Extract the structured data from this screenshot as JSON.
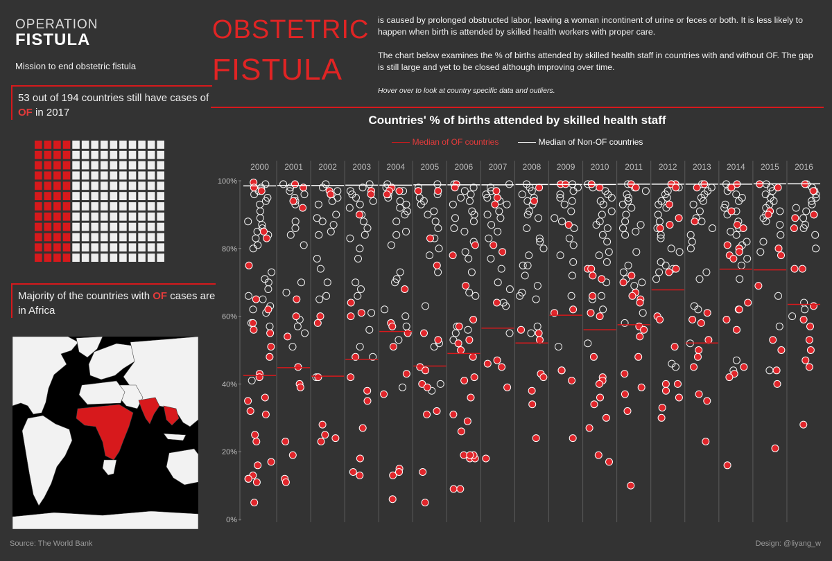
{
  "logo": {
    "top": "OPERATION",
    "bottom": "FISTULA"
  },
  "mission": "Mission to end obstetric fistula",
  "callout1": {
    "pre": "53 out of 194 countries still have cases of ",
    "highlight": "OF",
    "post": " in 2017"
  },
  "callout2": {
    "pre": "Majority of the countries with ",
    "highlight": "OF",
    "post": " cases are in Africa"
  },
  "waffle": {
    "total": 194,
    "of_countries": 53,
    "rows": 12,
    "cols": 14,
    "of_color": "#d7191c",
    "non_color": "#eeeeee"
  },
  "title": {
    "line1": "OBSTETRIC",
    "line2": "FISTULA"
  },
  "description": {
    "p1": "is caused by prolonged obstructed labor, leaving a woman incontinent of urine or feces or both.  It is less likely to happen when birth is attended by skilled health workers  with proper care.",
    "p2": "The chart below examines the % of births attended by skilled health staff in countries with and without OF. The gap is still large and yet to be closed although improving over time.",
    "hover_note": "Hover over to look at country specific data and outliers."
  },
  "footer": {
    "source": "Source: The World Bank",
    "design": "Design: @liyang_w"
  },
  "colors": {
    "background": "#333333",
    "accent": "#d7191c",
    "non_of": "#ffffff"
  },
  "chart_data": {
    "type": "scatter",
    "title": "Countries' % of births attended by skilled health staff",
    "legend": [
      {
        "name": "Median of OF countries",
        "color": "#d7191c"
      },
      {
        "name": "Median of Non-OF countries",
        "color": "#ffffff"
      }
    ],
    "y_ticks": [
      "100%",
      "80%",
      "60%",
      "40%",
      "20%",
      "0%"
    ],
    "ylim": [
      0,
      100
    ],
    "years": [
      "2000",
      "2001",
      "2002",
      "2003",
      "2004",
      "2005",
      "2006",
      "2007",
      "2008",
      "2009",
      "2010",
      "2011",
      "2012",
      "2013",
      "2014",
      "2015",
      "2016"
    ],
    "median_of": [
      42.5,
      44.8,
      42.3,
      47.3,
      55.5,
      45.3,
      49.0,
      56.5,
      52.1,
      60.3,
      56.0,
      57.5,
      67.8,
      52.1,
      73.9,
      73.7,
      63.5
    ],
    "median_non_of": [
      98.5,
      98.6,
      98.6,
      98.7,
      98.7,
      98.8,
      98.8,
      98.8,
      98.9,
      98.9,
      98.9,
      99.0,
      99.0,
      99.0,
      99.0,
      99.1,
      99.1
    ],
    "of_points": [
      [
        99.5,
        98,
        97,
        83,
        65,
        58,
        56,
        55,
        51,
        43,
        42,
        36,
        35,
        32,
        31,
        25,
        23,
        17,
        16,
        13,
        12,
        12,
        11,
        5,
        85,
        75,
        62,
        48
      ],
      [
        99,
        98,
        94,
        92,
        65,
        60,
        54,
        45,
        40,
        39,
        23,
        19,
        12,
        11
      ],
      [
        97,
        96,
        60,
        58,
        42,
        28,
        25,
        24,
        23
      ],
      [
        97,
        96,
        90,
        64,
        61,
        60,
        48,
        42,
        38,
        35,
        27,
        18,
        14,
        13
      ],
      [
        98,
        97,
        97,
        96,
        68,
        58,
        57,
        55,
        51,
        43,
        37,
        15,
        14,
        13,
        6
      ],
      [
        97,
        97,
        83,
        75,
        55,
        53,
        45,
        44,
        40,
        39,
        31,
        32,
        14,
        5
      ],
      [
        99,
        98,
        81,
        78,
        69,
        59,
        57,
        53,
        52,
        50,
        48,
        42,
        41,
        36,
        31,
        29,
        26,
        19,
        18,
        18,
        19,
        19,
        9,
        9
      ],
      [
        97,
        95,
        93,
        81,
        79,
        64,
        47,
        46,
        45,
        39,
        18
      ],
      [
        98,
        94,
        56,
        55,
        53,
        43,
        42,
        38,
        34,
        24
      ],
      [
        99,
        99,
        87,
        62,
        61,
        44,
        44,
        41,
        24
      ],
      [
        99,
        98,
        74,
        74,
        72,
        71,
        66,
        61,
        60,
        48,
        42,
        41,
        40,
        36,
        34,
        30,
        27,
        19,
        17
      ],
      [
        99,
        98,
        72,
        70,
        67,
        66,
        65,
        64,
        57,
        56,
        54,
        48,
        43,
        39,
        37,
        32,
        10
      ],
      [
        99,
        99,
        98,
        93,
        89,
        87,
        86,
        74,
        73,
        60,
        59,
        51,
        40,
        40,
        38,
        36,
        33,
        30
      ],
      [
        99,
        98,
        88,
        61,
        59,
        58,
        53,
        50,
        48,
        45,
        37,
        35,
        23
      ],
      [
        99,
        98,
        91,
        87,
        86,
        81,
        80,
        79,
        78,
        77,
        64,
        62,
        59,
        56,
        45,
        43,
        42,
        16
      ],
      [
        99,
        98,
        91,
        90,
        80,
        78,
        69,
        53,
        50,
        44,
        40,
        21
      ],
      [
        99,
        97,
        90,
        89,
        86,
        74,
        74,
        63,
        59,
        57,
        53,
        50,
        47,
        45,
        28
      ]
    ],
    "non_of_points": [
      [
        99,
        98,
        97,
        96,
        95,
        94,
        93,
        91,
        89,
        88,
        87,
        86,
        85,
        84,
        83,
        81,
        80,
        73,
        71,
        70,
        68,
        66,
        65,
        63,
        62,
        61,
        58,
        57,
        41
      ],
      [
        99,
        98,
        97,
        96,
        95,
        94,
        93,
        88,
        86,
        84,
        81,
        70,
        67,
        59,
        57,
        55,
        51
      ],
      [
        99,
        98,
        97,
        96,
        95,
        94,
        93,
        90,
        89,
        88,
        87,
        85,
        84,
        77,
        74,
        70,
        66,
        65,
        42
      ],
      [
        99,
        98,
        97,
        96,
        95,
        94,
        93,
        92,
        90,
        88,
        86,
        84,
        83,
        80,
        77,
        70,
        68,
        66,
        61,
        56,
        51,
        48
      ],
      [
        99,
        98,
        97,
        96,
        95,
        94,
        93,
        92,
        91,
        90,
        88,
        85,
        84,
        81,
        73,
        71,
        70,
        62,
        60,
        57,
        53,
        39
      ],
      [
        99,
        98,
        97,
        96,
        95,
        94,
        93,
        91,
        90,
        88,
        86,
        83,
        80,
        78,
        73,
        63,
        52,
        51,
        40,
        38
      ],
      [
        99,
        98,
        97,
        96,
        95,
        94,
        93,
        91,
        90,
        89,
        88,
        86,
        85,
        82,
        79,
        77,
        73,
        67,
        66,
        57,
        56,
        55,
        53
      ],
      [
        99,
        98,
        97,
        96,
        95,
        94,
        93,
        91,
        90,
        89,
        87,
        85,
        83,
        77,
        74,
        70,
        68,
        64,
        63,
        55
      ],
      [
        99,
        98,
        97,
        96,
        95,
        94,
        93,
        91,
        90,
        89,
        86,
        83,
        82,
        80,
        78,
        75,
        75,
        72,
        69,
        67,
        66,
        65,
        57,
        55
      ],
      [
        99,
        98,
        97,
        96,
        95,
        94,
        93,
        91,
        89,
        88,
        86,
        83,
        81,
        78,
        76,
        72,
        66,
        51
      ],
      [
        99,
        98,
        97,
        96,
        95,
        94,
        93,
        91,
        90,
        88,
        87,
        86,
        84,
        82,
        79,
        78,
        76,
        70,
        66,
        65,
        62,
        52
      ],
      [
        99,
        98,
        97,
        96,
        95,
        94,
        93,
        92,
        90,
        88,
        87,
        86,
        85,
        84,
        79,
        75,
        73,
        71,
        70,
        69,
        61,
        58
      ],
      [
        99,
        98,
        97,
        96,
        95,
        94,
        93,
        92,
        90,
        88,
        86,
        84,
        83,
        80,
        79,
        76,
        75,
        74,
        73,
        71,
        46,
        45
      ],
      [
        99,
        98,
        97,
        96,
        95,
        94,
        93,
        91,
        89,
        88,
        86,
        84,
        82,
        80,
        73,
        71,
        63,
        62,
        52
      ],
      [
        99,
        98,
        97,
        96,
        95,
        94,
        93,
        92,
        91,
        90,
        88,
        86,
        85,
        84,
        82,
        81,
        80,
        77,
        75,
        71,
        62,
        47,
        44
      ],
      [
        99,
        98,
        97,
        96,
        95,
        94,
        93,
        92,
        91,
        90,
        89,
        88,
        87,
        84,
        82,
        79,
        66,
        57,
        44
      ],
      [
        99,
        98,
        97,
        96,
        95,
        94,
        93,
        92,
        91,
        90,
        89,
        87,
        86,
        84,
        80,
        64,
        62,
        60
      ]
    ]
  }
}
